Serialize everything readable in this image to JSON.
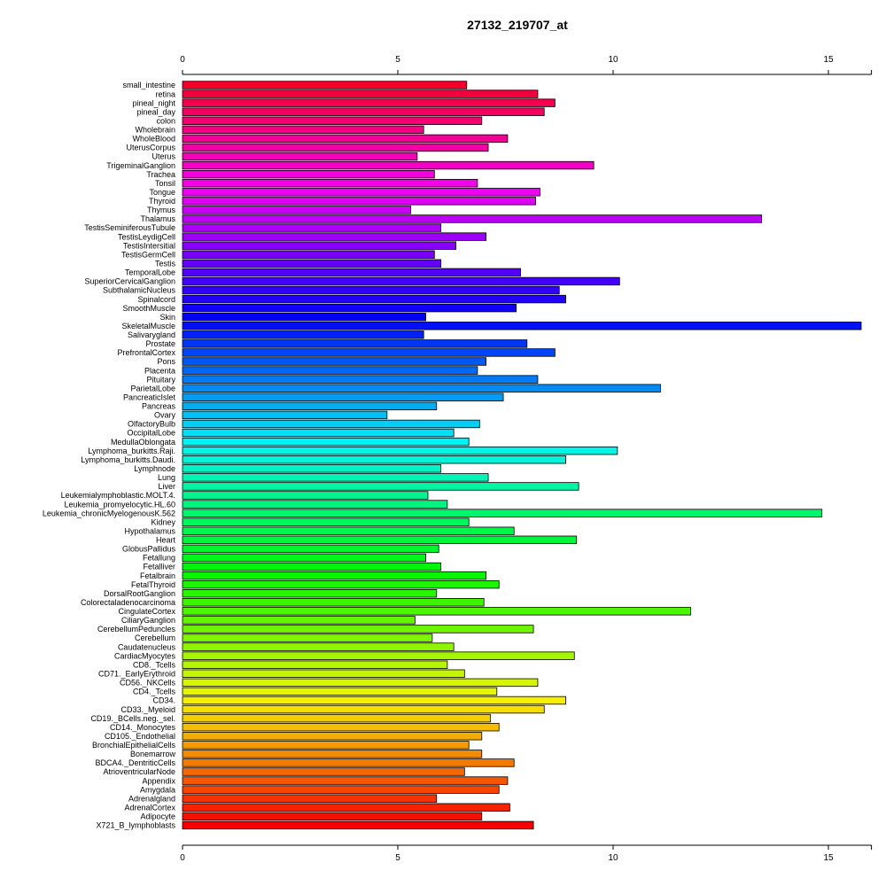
{
  "chart_data": {
    "type": "bar",
    "orientation": "horizontal",
    "title": "27132_219707_at",
    "xlim": [
      0,
      15.8
    ],
    "x_ticks": [
      0,
      5,
      10,
      15
    ],
    "axis_positions": [
      "top",
      "bottom"
    ],
    "grid": false,
    "color_scheme": "rainbow (red at top, cycling through magenta, blue, cyan, green, yellow, orange, back to red at bottom)",
    "categories": [
      "small_intestine",
      "retina",
      "pineal_night",
      "pineal_day",
      "colon",
      "Wholebrain",
      "WholeBlood",
      "UterusCorpus",
      "Uterus",
      "TrigeminalGanglion",
      "Trachea",
      "Tonsil",
      "Tongue",
      "Thyroid",
      "Thymus",
      "Thalamus",
      "TestisSeminiferousTubule",
      "TestisLeydigCell",
      "TestisIntersitial",
      "TestisGermCell",
      "Testis",
      "TemporalLobe",
      "SuperiorCervicalGanglion",
      "SubthalamicNucleus",
      "Spinalcord",
      "SmoothMuscle",
      "Skin",
      "SkeletalMuscle",
      "Salivarygland",
      "Prostate",
      "PrefrontalCortex",
      "Pons",
      "Placenta",
      "Pituitary",
      "ParietalLobe",
      "PancreaticIslet",
      "Pancreas",
      "Ovary",
      "OlfactoryBulb",
      "OccipitalLobe",
      "MedullaOblongata",
      "Lymphoma_burkitts.Raji.",
      "Lymphoma_burkitts.Daudi.",
      "Lymphnode",
      "Lung",
      "Liver",
      "Leukemialymphoblastic.MOLT.4.",
      "Leukemia_promyelocytic.HL.60",
      "Leukemia_chronicMyelogenousK.562",
      "Kidney",
      "Hypothalamus",
      "Heart",
      "GlobusPallidus",
      "Fetallung",
      "Fetalliver",
      "Fetalbrain",
      "FetalThyroid",
      "DorsalRootGanglion",
      "Colorectaladenocarcinoma",
      "CingulateCortex",
      "CiliaryGanglion",
      "CerebellumPeduncles",
      "Cerebellum",
      "Caudatenucleus",
      "CardiacMyocytes",
      "CD8._Tcells",
      "CD71._EarlyErythroid",
      "CD56._NKCells",
      "CD4._Tcells",
      "CD34.",
      "CD33._Myeloid",
      "CD19._BCells.neg._sel.",
      "CD14._Monocytes",
      "CD105._Endothelial",
      "BronchialEpithelialCells",
      "Bonemarrow",
      "BDCA4._DentriticCells",
      "AtrioventricularNode",
      "Appendix",
      "Amygdala",
      "Adrenalgland",
      "AdrenalCortex",
      "Adipocyte",
      "X721_B_lymphoblasts"
    ],
    "values": [
      6.6,
      8.25,
      8.65,
      8.4,
      6.95,
      5.6,
      7.55,
      7.1,
      5.45,
      9.55,
      5.85,
      6.85,
      8.3,
      8.2,
      5.3,
      13.45,
      6.0,
      7.05,
      6.35,
      5.85,
      6.0,
      7.85,
      10.15,
      8.75,
      8.9,
      7.75,
      5.65,
      15.8,
      5.6,
      8.0,
      8.65,
      7.05,
      6.85,
      8.25,
      11.1,
      7.45,
      5.9,
      4.75,
      6.9,
      6.3,
      6.65,
      10.1,
      8.9,
      6.0,
      7.1,
      9.2,
      5.7,
      6.15,
      14.85,
      6.65,
      7.7,
      9.15,
      5.95,
      5.65,
      6.0,
      7.05,
      7.35,
      5.9,
      7.0,
      11.8,
      5.4,
      8.15,
      5.8,
      6.3,
      9.1,
      6.15,
      6.55,
      8.25,
      7.3,
      8.9,
      8.4,
      7.15,
      7.35,
      6.95,
      6.65,
      6.95,
      7.7,
      6.55,
      7.55,
      7.35,
      5.9,
      7.6,
      6.95,
      8.15
    ]
  }
}
